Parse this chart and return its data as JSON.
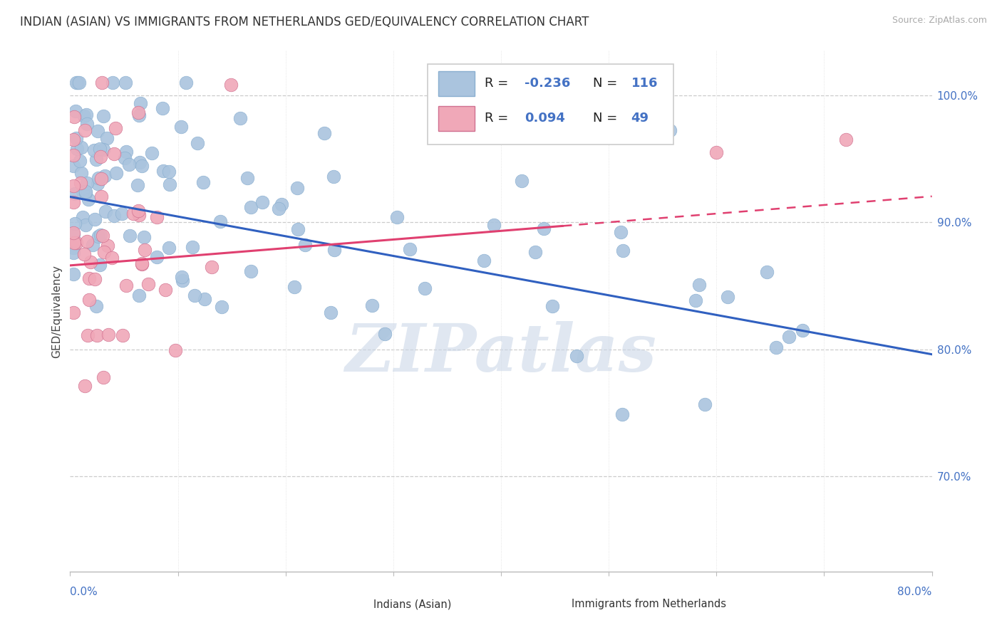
{
  "title": "INDIAN (ASIAN) VS IMMIGRANTS FROM NETHERLANDS GED/EQUIVALENCY CORRELATION CHART",
  "source": "Source: ZipAtlas.com",
  "ylabel": "GED/Equivalency",
  "right_yticks": [
    "100.0%",
    "90.0%",
    "80.0%",
    "70.0%"
  ],
  "right_ytick_vals": [
    1.0,
    0.9,
    0.8,
    0.7
  ],
  "xmin": 0.0,
  "xmax": 0.8,
  "ymin": 0.625,
  "ymax": 1.035,
  "legend_blue_label": "Indians (Asian)",
  "legend_pink_label": "Immigrants from Netherlands",
  "R_blue": -0.236,
  "N_blue": 116,
  "R_pink": 0.094,
  "N_pink": 49,
  "blue_dot_color": "#aac4de",
  "pink_dot_color": "#f0a8b8",
  "blue_line_color": "#3060c0",
  "pink_line_color": "#e04070",
  "watermark_color": "#ccd8e8",
  "title_fontsize": 12,
  "source_fontsize": 9,
  "axis_label_fontsize": 11,
  "legend_fontsize": 13,
  "watermark": "ZIPatlas"
}
